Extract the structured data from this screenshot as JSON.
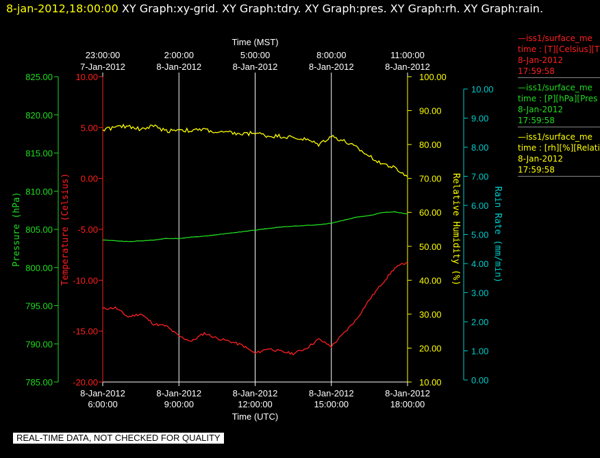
{
  "header": {
    "timestamp": "8-jan-2012,18:00:00",
    "titles": "XY Graph:xy-grid.  XY Graph:tdry.  XY Graph:pres.  XY Graph:rh.  XY Graph:rain."
  },
  "disclaimer": "REAL-TIME DATA, NOT CHECKED FOR QUALITY",
  "legend": [
    {
      "name": "—iss1/surface_me",
      "units": "time : [T][Celsius][T",
      "date": "8-Jan-2012",
      "time": "17:59:58",
      "color": "#ff2020"
    },
    {
      "name": "—iss1/surface_me",
      "units": "time : [P][hPa][Pres",
      "date": "8-Jan-2012",
      "time": "17:59:58",
      "color": "#20dd20"
    },
    {
      "name": "—iss1/surface_me",
      "units": "time : [rh][%][Relati",
      "date": "8-Jan-2012",
      "time": "17:59:58",
      "color": "#ffff00"
    }
  ],
  "chart_data": {
    "type": "line",
    "top_axis": {
      "title": "Time (MST)",
      "ticks": [
        {
          "time": "23:00:00",
          "date": "7-Jan-2012"
        },
        {
          "time": "2:00:00",
          "date": "8-Jan-2012"
        },
        {
          "time": "5:00:00",
          "date": "8-Jan-2012"
        },
        {
          "time": "8:00:00",
          "date": "8-Jan-2012"
        },
        {
          "time": "11:00:00",
          "date": "8-Jan-2012"
        }
      ]
    },
    "bottom_axis": {
      "title": "Time (UTC)",
      "range": [
        "2012-01-08 06:00:00",
        "2012-01-08 18:00:00"
      ],
      "ticks": [
        {
          "date": "8-Jan-2012",
          "time": "6:00:00"
        },
        {
          "date": "8-Jan-2012",
          "time": "9:00:00"
        },
        {
          "date": "8-Jan-2012",
          "time": "12:00:00"
        },
        {
          "date": "8-Jan-2012",
          "time": "15:00:00"
        },
        {
          "date": "8-Jan-2012",
          "time": "18:00:00"
        }
      ]
    },
    "y_axes": {
      "pressure": {
        "title": "Pressure (hPa)",
        "range": [
          785,
          825
        ],
        "ticks": [
          "825.00",
          "820.00",
          "815.00",
          "810.00",
          "805.00",
          "800.00",
          "795.00",
          "790.00",
          "785.00"
        ],
        "color": "#20dd20"
      },
      "temperature": {
        "title": "Temperature (Celsius)",
        "range": [
          -20,
          10
        ],
        "ticks": [
          "10.00",
          "5.00",
          "0.00",
          "-5.00",
          "-10.00",
          "-15.00",
          "-20.00"
        ],
        "color": "#ff2020"
      },
      "rh": {
        "title": "Relative Humidity (%)",
        "range": [
          10,
          100
        ],
        "ticks": [
          "100.00",
          "90.00",
          "80.00",
          "70.00",
          "60.00",
          "50.00",
          "40.00",
          "30.00",
          "20.00",
          "10.00"
        ],
        "color": "#ffff00"
      },
      "rain": {
        "title": "Rain Rate (mm/min)",
        "range": [
          0,
          10.5
        ],
        "ticks": [
          "10.00",
          "9.00",
          "8.00",
          "7.00",
          "6.00",
          "5.00",
          "4.00",
          "3.00",
          "2.00",
          "1.00",
          "0.00"
        ],
        "color": "#00cccc"
      }
    },
    "series": [
      {
        "axis": "temperature",
        "color": "#ff2020",
        "x": [
          "2012-01-08 06:00",
          "2012-01-08 06:30",
          "2012-01-08 07:00",
          "2012-01-08 07:30",
          "2012-01-08 08:00",
          "2012-01-08 08:30",
          "2012-01-08 09:00",
          "2012-01-08 09:30",
          "2012-01-08 10:00",
          "2012-01-08 10:30",
          "2012-01-08 11:00",
          "2012-01-08 11:30",
          "2012-01-08 12:00",
          "2012-01-08 12:30",
          "2012-01-08 13:00",
          "2012-01-08 13:30",
          "2012-01-08 14:00",
          "2012-01-08 14:30",
          "2012-01-08 15:00",
          "2012-01-08 15:30",
          "2012-01-08 16:00",
          "2012-01-08 16:30",
          "2012-01-08 17:00",
          "2012-01-08 17:30",
          "2012-01-08 18:00"
        ],
        "values": [
          -12.8,
          -12.7,
          -13.6,
          -13.3,
          -14.3,
          -14.5,
          -15.5,
          -16.0,
          -15.2,
          -15.7,
          -16.0,
          -16.4,
          -17.2,
          -16.7,
          -17.0,
          -17.2,
          -16.7,
          -15.8,
          -16.5,
          -15.2,
          -13.8,
          -11.9,
          -10.3,
          -8.8,
          -8.2
        ]
      },
      {
        "axis": "pressure",
        "color": "#20dd20",
        "x": [
          "2012-01-08 06:00",
          "2012-01-08 06:30",
          "2012-01-08 07:00",
          "2012-01-08 07:30",
          "2012-01-08 08:00",
          "2012-01-08 08:30",
          "2012-01-08 09:00",
          "2012-01-08 09:30",
          "2012-01-08 10:00",
          "2012-01-08 10:30",
          "2012-01-08 11:00",
          "2012-01-08 11:30",
          "2012-01-08 12:00",
          "2012-01-08 12:30",
          "2012-01-08 13:00",
          "2012-01-08 13:30",
          "2012-01-08 14:00",
          "2012-01-08 14:30",
          "2012-01-08 15:00",
          "2012-01-08 15:30",
          "2012-01-08 16:00",
          "2012-01-08 16:30",
          "2012-01-08 17:00",
          "2012-01-08 17:30",
          "2012-01-08 18:00"
        ],
        "values": [
          803.6,
          803.5,
          803.4,
          803.5,
          803.6,
          803.8,
          803.8,
          804.0,
          804.1,
          804.3,
          804.5,
          804.7,
          804.9,
          805.1,
          805.3,
          805.4,
          805.5,
          805.6,
          805.8,
          806.2,
          806.6,
          806.8,
          807.2,
          807.3,
          807.0
        ]
      },
      {
        "axis": "rh",
        "color": "#ffff00",
        "x": [
          "2012-01-08 06:00",
          "2012-01-08 06:30",
          "2012-01-08 07:00",
          "2012-01-08 07:30",
          "2012-01-08 08:00",
          "2012-01-08 08:30",
          "2012-01-08 09:00",
          "2012-01-08 09:30",
          "2012-01-08 10:00",
          "2012-01-08 10:30",
          "2012-01-08 11:00",
          "2012-01-08 11:30",
          "2012-01-08 12:00",
          "2012-01-08 12:30",
          "2012-01-08 13:00",
          "2012-01-08 13:30",
          "2012-01-08 14:00",
          "2012-01-08 14:30",
          "2012-01-08 15:00",
          "2012-01-08 15:30",
          "2012-01-08 16:00",
          "2012-01-08 16:30",
          "2012-01-08 17:00",
          "2012-01-08 17:30",
          "2012-01-08 18:00"
        ],
        "values": [
          84.5,
          85.0,
          85.5,
          84.5,
          85.5,
          84.0,
          84.5,
          84.0,
          84.5,
          83.5,
          83.5,
          83.0,
          83.5,
          82.5,
          82.5,
          82.0,
          81.5,
          80.0,
          82.5,
          81.0,
          79.0,
          76.5,
          74.5,
          73.0,
          70.5
        ]
      }
    ]
  }
}
